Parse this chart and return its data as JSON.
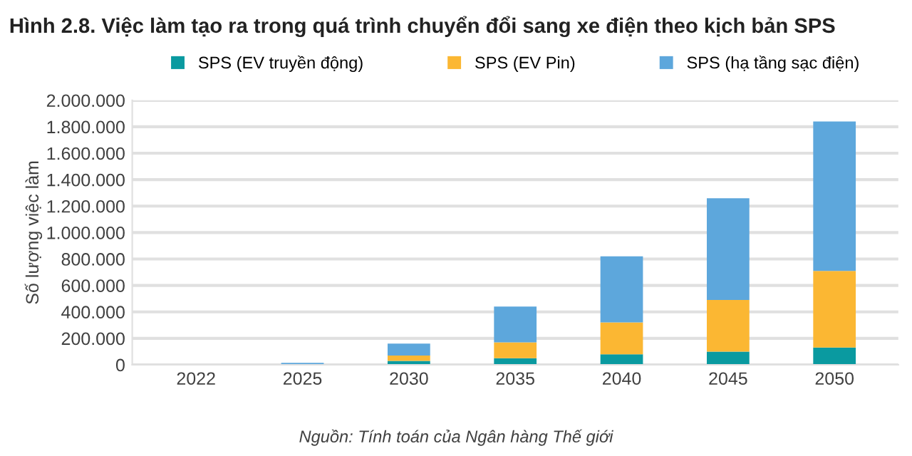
{
  "chart_data": {
    "type": "bar",
    "stacked": true,
    "title": "Hình 2.8. Việc làm tạo ra trong quá trình chuyển đổi sang xe điện theo kịch bản SPS",
    "ylabel": "Số lượng việc làm",
    "categories": [
      "2022",
      "2025",
      "2030",
      "2035",
      "2040",
      "2045",
      "2050"
    ],
    "series": [
      {
        "name": "SPS (EV truyền động)",
        "color": "#0a9aa0",
        "values": [
          0,
          0,
          30000,
          50000,
          80000,
          100000,
          130000
        ]
      },
      {
        "name": "SPS (EV Pin)",
        "color": "#fbb733",
        "values": [
          0,
          5000,
          40000,
          120000,
          240000,
          390000,
          580000
        ]
      },
      {
        "name": "SPS (hạ tầng sạc điện)",
        "color": "#5da7dc",
        "values": [
          5000,
          10000,
          90000,
          270000,
          500000,
          770000,
          1130000
        ]
      }
    ],
    "ylim": [
      0,
      2000000
    ],
    "yticks": [
      {
        "value": 0,
        "label": "0"
      },
      {
        "value": 200000,
        "label": "200.000"
      },
      {
        "value": 400000,
        "label": "400.000"
      },
      {
        "value": 600000,
        "label": "600.000"
      },
      {
        "value": 800000,
        "label": "800.000"
      },
      {
        "value": 1000000,
        "label": "1.000.000"
      },
      {
        "value": 1200000,
        "label": "1.200.000"
      },
      {
        "value": 1400000,
        "label": "1.400.000"
      },
      {
        "value": 1600000,
        "label": "1.600.000"
      },
      {
        "value": 1800000,
        "label": "1.800.000"
      },
      {
        "value": 2000000,
        "label": "2.000.000"
      }
    ],
    "grid": "y",
    "legend": "top",
    "annotations": [
      "Nguồn: Tính toán của Ngân hàng Thế giới"
    ]
  }
}
